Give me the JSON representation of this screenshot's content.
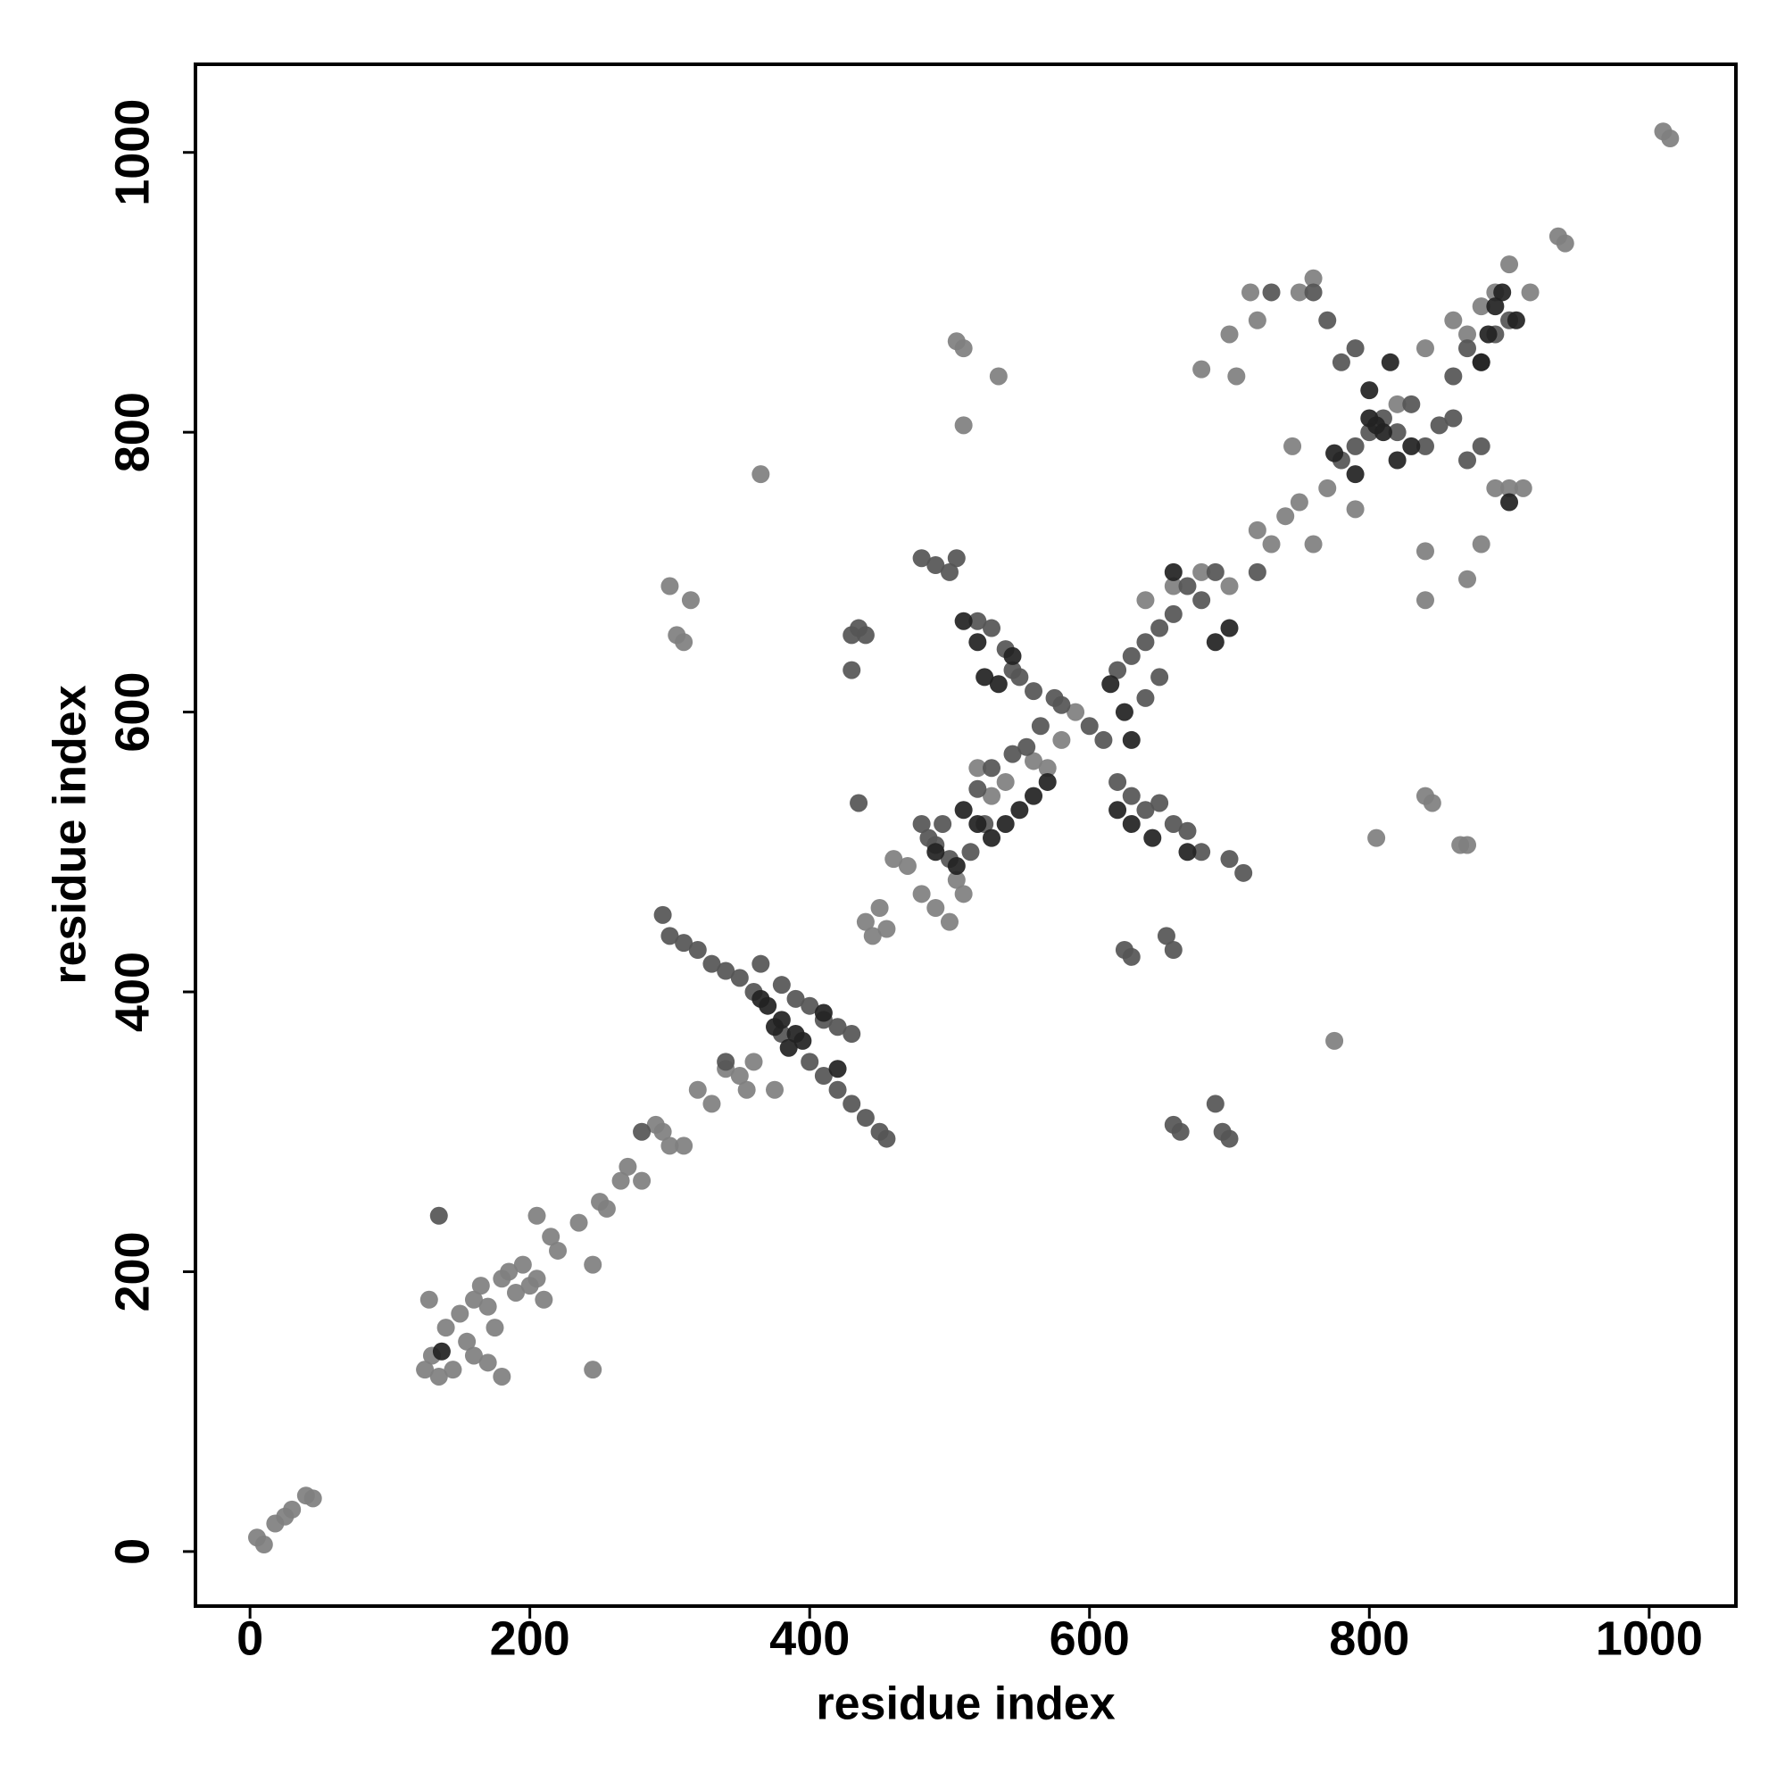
{
  "chart_data": {
    "type": "scatter",
    "xlabel": "residue index",
    "ylabel": "residue index",
    "xlim": [
      -39,
      1062
    ],
    "ylim": [
      -39,
      1063
    ],
    "xticks": [
      0,
      200,
      400,
      600,
      800,
      1000
    ],
    "yticks": [
      0,
      200,
      400,
      600,
      800,
      1000
    ],
    "series": [
      {
        "color": "#7f7f7f",
        "x": [
          5,
          10,
          18,
          25,
          30,
          40,
          45,
          125,
          130,
          135,
          140,
          150,
          155,
          160,
          165,
          170,
          175,
          180,
          185,
          190,
          195,
          200,
          205,
          210,
          145,
          128,
          170,
          180,
          160,
          205,
          215,
          220,
          235,
          245,
          245,
          250,
          255,
          265,
          270,
          280,
          290,
          295,
          300,
          310,
          320,
          330,
          340,
          350,
          355,
          360,
          375,
          300,
          305,
          310,
          315,
          440,
          445,
          450,
          455,
          460,
          470,
          480,
          490,
          500,
          505,
          510,
          520,
          530,
          540,
          560,
          570,
          580,
          590,
          505,
          510,
          535,
          510,
          365,
          640,
          660,
          680,
          700,
          720,
          730,
          740,
          750,
          760,
          770,
          775,
          805,
          820,
          840,
          860,
          870,
          880,
          890,
          900,
          915,
          935,
          940,
          1010,
          1015,
          840,
          845,
          865,
          870,
          840,
          840,
          870,
          880,
          890,
          900,
          910,
          700,
          720,
          715,
          750,
          760,
          745,
          790,
          680,
          705
        ],
        "values": [
          10,
          5,
          20,
          25,
          30,
          40,
          38,
          130,
          140,
          125,
          160,
          170,
          150,
          180,
          190,
          175,
          160,
          195,
          200,
          185,
          205,
          190,
          195,
          180,
          130,
          180,
          135,
          125,
          140,
          240,
          225,
          215,
          235,
          130,
          205,
          250,
          245,
          265,
          275,
          265,
          305,
          300,
          290,
          290,
          330,
          320,
          345,
          340,
          330,
          350,
          330,
          690,
          655,
          650,
          680,
          450,
          440,
          460,
          445,
          495,
          490,
          470,
          460,
          450,
          480,
          470,
          560,
          540,
          550,
          565,
          560,
          580,
          600,
          865,
          860,
          840,
          805,
          770,
          680,
          690,
          700,
          690,
          730,
          720,
          740,
          750,
          720,
          760,
          365,
          510,
          820,
          860,
          880,
          870,
          890,
          900,
          920,
          900,
          940,
          935,
          1015,
          1010,
          540,
          535,
          505,
          505,
          680,
          715,
          695,
          720,
          760,
          760,
          760,
          870,
          880,
          900,
          900,
          910,
          790,
          745,
          845,
          840
        ]
      },
      {
        "color": "#555555",
        "x": [
          135,
          280,
          295,
          300,
          310,
          320,
          330,
          340,
          350,
          360,
          365,
          380,
          390,
          400,
          410,
          420,
          430,
          340,
          380,
          400,
          410,
          420,
          430,
          440,
          450,
          455,
          430,
          435,
          440,
          430,
          435,
          480,
          485,
          490,
          495,
          500,
          515,
          525,
          520,
          530,
          545,
          555,
          565,
          575,
          580,
          600,
          610,
          480,
          490,
          500,
          505,
          520,
          530,
          540,
          545,
          550,
          560,
          620,
          630,
          640,
          650,
          660,
          670,
          680,
          700,
          710,
          625,
          630,
          655,
          660,
          660,
          665,
          690,
          695,
          700,
          620,
          630,
          640,
          650,
          660,
          670,
          680,
          690,
          650,
          640,
          780,
          790,
          800,
          810,
          820,
          830,
          840,
          850,
          860,
          870,
          880,
          760,
          730,
          770,
          780,
          790,
          860,
          870,
          880,
          890,
          900,
          720
        ],
        "values": [
          240,
          300,
          455,
          440,
          435,
          430,
          420,
          415,
          410,
          400,
          420,
          405,
          395,
          390,
          380,
          375,
          370,
          350,
          370,
          350,
          340,
          330,
          320,
          310,
          300,
          295,
          655,
          660,
          655,
          630,
          535,
          520,
          510,
          505,
          520,
          495,
          500,
          520,
          545,
          560,
          570,
          575,
          590,
          610,
          605,
          590,
          580,
          710,
          705,
          700,
          710,
          665,
          660,
          645,
          630,
          625,
          615,
          550,
          540,
          530,
          535,
          520,
          515,
          500,
          495,
          485,
          430,
          425,
          440,
          430,
          305,
          300,
          320,
          300,
          295,
          630,
          640,
          650,
          660,
          670,
          690,
          680,
          700,
          625,
          610,
          780,
          790,
          800,
          810,
          800,
          820,
          790,
          805,
          810,
          780,
          790,
          900,
          900,
          880,
          850,
          860,
          840,
          860,
          850,
          870,
          880,
          700
        ]
      },
      {
        "color": "#222222",
        "x": [
          137,
          365,
          370,
          375,
          380,
          385,
          390,
          395,
          410,
          420,
          490,
          505,
          510,
          520,
          530,
          540,
          550,
          560,
          570,
          510,
          520,
          525,
          535,
          545,
          615,
          625,
          630,
          620,
          630,
          645,
          670,
          660,
          690,
          700,
          775,
          790,
          800,
          805,
          810,
          820,
          830,
          800,
          815,
          880,
          885,
          890,
          895,
          905,
          900
        ],
        "values": [
          143,
          395,
          390,
          375,
          380,
          360,
          370,
          365,
          385,
          345,
          500,
          490,
          530,
          520,
          510,
          520,
          530,
          540,
          550,
          665,
          650,
          625,
          620,
          640,
          620,
          600,
          580,
          530,
          520,
          510,
          500,
          700,
          650,
          660,
          785,
          770,
          810,
          805,
          800,
          780,
          790,
          830,
          850,
          850,
          870,
          890,
          900,
          880,
          750
        ]
      }
    ]
  }
}
